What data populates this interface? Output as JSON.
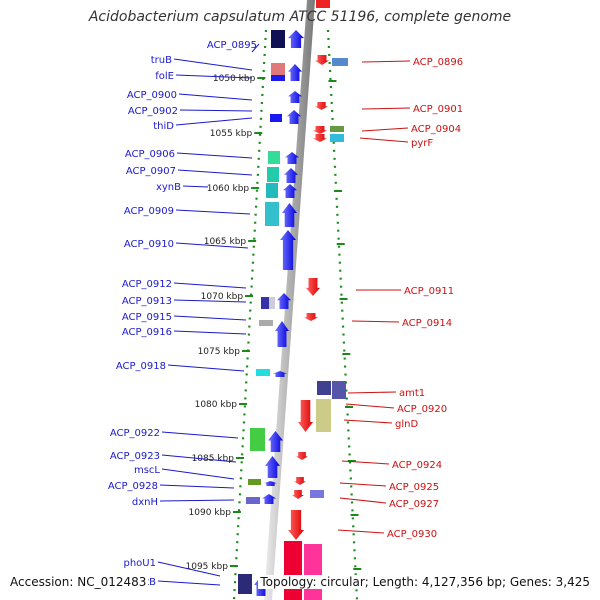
{
  "title": "Acidobacterium capsulatum ATCC 51196, complete genome",
  "accession": "Accession: NC_012483",
  "topology": "Topology: circular; Length: 4,127,356 bp; Genes: 3,425",
  "colors": {
    "backbone": "#888888",
    "left_label": "#1a1acc",
    "right_label": "#cc1111",
    "ruler_dots": "#1a8a1a",
    "tick": "#1a8a1a"
  },
  "ruler": [
    "1050 kbp",
    "1055 kbp",
    "1060 kbp",
    "1065 kbp",
    "1070 kbp",
    "1075 kbp",
    "1080 kbp",
    "1085 kbp",
    "1090 kbp",
    "1095 kbp"
  ],
  "left_labels": [
    "ACP_0895",
    "truB",
    "folE",
    "ACP_0900",
    "ACP_0902",
    "thiD",
    "ACP_0906",
    "ACP_0907",
    "xynB",
    "ACP_0909",
    "ACP_0910",
    "ACP_0912",
    "ACP_0913",
    "ACP_0915",
    "ACP_0916",
    "ACP_0918",
    "ACP_0922",
    "ACP_0923",
    "mscL",
    "ACP_0928",
    "dxnH",
    "phoU1",
    "pstB"
  ],
  "right_labels": [
    "ACP_0896",
    "ACP_0901",
    "ACP_0904",
    "pyrF",
    "ACP_0911",
    "ACP_0914",
    "amt1",
    "ACP_0920",
    "glnD",
    "ACP_0924",
    "ACP_0925",
    "ACP_0927",
    "ACP_0930"
  ]
}
